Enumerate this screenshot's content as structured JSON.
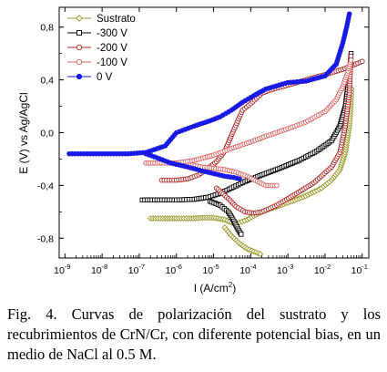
{
  "chart_data": {
    "type": "line",
    "xlabel": "I (A/cm",
    "xlabel_sup": "2",
    "xlabel_end": ")",
    "ylabel": "E (V) vs Ag/AgCl",
    "x_scale": "log",
    "xlim": [
      7e-10,
      0.15
    ],
    "ylim": [
      -0.95,
      0.95
    ],
    "x_ticks": [
      {
        "value": 1e-09,
        "label": "10",
        "exp": "-9"
      },
      {
        "value": 1e-08,
        "label": "10",
        "exp": "-8"
      },
      {
        "value": 1e-07,
        "label": "10",
        "exp": "-7"
      },
      {
        "value": 1e-06,
        "label": "10",
        "exp": "-6"
      },
      {
        "value": 1e-05,
        "label": "10",
        "exp": "-5"
      },
      {
        "value": 0.0001,
        "label": "10",
        "exp": "-4"
      },
      {
        "value": 0.001,
        "label": "10",
        "exp": "-3"
      },
      {
        "value": 0.01,
        "label": "10",
        "exp": "-2"
      },
      {
        "value": 0.1,
        "label": "10",
        "exp": "-1"
      }
    ],
    "y_ticks": [
      {
        "value": 0.8,
        "label": "0,8"
      },
      {
        "value": 0.4,
        "label": "0,4"
      },
      {
        "value": 0.0,
        "label": "0,0"
      },
      {
        "value": -0.4,
        "label": "-0,4"
      },
      {
        "value": -0.8,
        "label": "-0,8"
      }
    ],
    "legend_position": "top-left",
    "series": [
      {
        "name": "Sustrato",
        "color": "#9a9a2a",
        "marker": "diamond",
        "marker_fill": "none",
        "points": [
          [
            2e-07,
            -0.65
          ],
          [
            5e-07,
            -0.65
          ],
          [
            1e-06,
            -0.65
          ],
          [
            2.5e-06,
            -0.65
          ],
          [
            5e-06,
            -0.645
          ],
          [
            1e-05,
            -0.645
          ],
          [
            2e-05,
            -0.66
          ],
          [
            3.5e-05,
            -0.69
          ],
          [
            5e-05,
            -0.68
          ],
          [
            8e-05,
            -0.66
          ],
          [
            0.00012,
            -0.63
          ],
          [
            0.0002,
            -0.6
          ],
          [
            0.0004,
            -0.57
          ],
          [
            0.001,
            -0.53
          ],
          [
            0.003,
            -0.48
          ],
          [
            0.008,
            -0.42
          ],
          [
            0.015,
            -0.36
          ],
          [
            0.025,
            -0.28
          ],
          [
            0.035,
            -0.15
          ],
          [
            0.045,
            0.05
          ],
          [
            0.05,
            0.25
          ],
          [
            0.052,
            0.33
          ]
        ],
        "branch_points": [
          [
            2e-05,
            -0.72
          ],
          [
            3e-05,
            -0.78
          ],
          [
            5e-05,
            -0.84
          ],
          [
            8e-05,
            -0.88
          ],
          [
            0.00012,
            -0.9
          ],
          [
            0.00018,
            -0.92
          ]
        ]
      },
      {
        "name": "-300 V",
        "color": "#000000",
        "marker": "square",
        "marker_fill": "none",
        "points": [
          [
            1.2e-07,
            -0.51
          ],
          [
            3e-07,
            -0.51
          ],
          [
            1e-06,
            -0.51
          ],
          [
            3e-06,
            -0.505
          ],
          [
            7e-06,
            -0.49
          ],
          [
            1.5e-05,
            -0.46
          ],
          [
            3e-05,
            -0.42
          ],
          [
            7e-05,
            -0.37
          ],
          [
            0.0002,
            -0.32
          ],
          [
            0.0006,
            -0.27
          ],
          [
            0.002,
            -0.21
          ],
          [
            0.006,
            -0.14
          ],
          [
            0.015,
            -0.06
          ],
          [
            0.025,
            0.05
          ],
          [
            0.035,
            0.2
          ],
          [
            0.045,
            0.45
          ],
          [
            0.05,
            0.6
          ]
        ],
        "branch_points": [
          [
            8e-06,
            -0.52
          ],
          [
            1.5e-05,
            -0.55
          ],
          [
            2.5e-05,
            -0.6
          ],
          [
            3.5e-05,
            -0.67
          ],
          [
            4.5e-05,
            -0.73
          ],
          [
            5.5e-05,
            -0.77
          ]
        ]
      },
      {
        "name": "-200 V",
        "color": "#b22222",
        "marker": "circle",
        "marker_fill": "none",
        "points": [
          [
            4e-07,
            -0.36
          ],
          [
            1e-06,
            -0.36
          ],
          [
            2e-06,
            -0.35
          ],
          [
            4e-06,
            -0.32
          ],
          [
            7e-06,
            -0.27
          ],
          [
            1.2e-05,
            -0.22
          ],
          [
            2e-05,
            -0.14
          ],
          [
            3.5e-05,
            0.02
          ],
          [
            6e-05,
            0.17
          ],
          [
            0.0001,
            0.22
          ],
          [
            0.0002,
            0.3
          ],
          [
            0.0004,
            0.33
          ],
          [
            0.001,
            0.36
          ],
          [
            0.003,
            0.4
          ],
          [
            0.01,
            0.44
          ],
          [
            0.03,
            0.48
          ],
          [
            0.1,
            0.54
          ]
        ],
        "branch_points": [
          [
            1.2e-05,
            -0.42
          ],
          [
            2.5e-05,
            -0.5
          ],
          [
            4e-05,
            -0.56
          ],
          [
            7e-05,
            -0.6
          ],
          [
            0.00012,
            -0.61
          ],
          [
            0.0002,
            -0.6
          ],
          [
            0.0005,
            -0.55
          ],
          [
            0.0015,
            -0.47
          ],
          [
            0.005,
            -0.38
          ],
          [
            0.015,
            -0.26
          ],
          [
            0.025,
            -0.15
          ],
          [
            0.035,
            0.05
          ],
          [
            0.045,
            0.3
          ],
          [
            0.05,
            0.58
          ]
        ]
      },
      {
        "name": "-100 V",
        "color": "#e06060",
        "marker": "circle",
        "marker_fill": "none",
        "points": [
          [
            1.5e-07,
            -0.23
          ],
          [
            4e-07,
            -0.23
          ],
          [
            1e-06,
            -0.23
          ],
          [
            2e-06,
            -0.24
          ],
          [
            5e-06,
            -0.26
          ],
          [
            1e-05,
            -0.27
          ],
          [
            2e-05,
            -0.28
          ],
          [
            4e-05,
            -0.3
          ],
          [
            8e-05,
            -0.33
          ],
          [
            0.00015,
            -0.37
          ],
          [
            0.00025,
            -0.4
          ],
          [
            0.0005,
            -0.4
          ]
        ],
        "branch_points": [
          [
            1e-06,
            -0.23
          ],
          [
            3e-06,
            -0.21
          ],
          [
            1e-05,
            -0.17
          ],
          [
            3e-05,
            -0.12
          ],
          [
            0.0001,
            -0.07
          ],
          [
            0.0003,
            -0.02
          ],
          [
            0.001,
            0.03
          ],
          [
            0.003,
            0.08
          ],
          [
            0.01,
            0.16
          ],
          [
            0.02,
            0.25
          ],
          [
            0.03,
            0.35
          ],
          [
            0.04,
            0.45
          ],
          [
            0.05,
            0.55
          ]
        ]
      },
      {
        "name": "0 V",
        "color": "#1a1ae6",
        "marker": "filled-circle",
        "marker_fill": "#1a1ae6",
        "points": [
          [
            1.3e-09,
            -0.16
          ],
          [
            1e-08,
            -0.16
          ],
          [
            5e-08,
            -0.16
          ],
          [
            1.5e-07,
            -0.15
          ],
          [
            5e-07,
            -0.1
          ],
          [
            1e-06,
            0.0
          ],
          [
            3e-06,
            0.05
          ],
          [
            8e-06,
            0.09
          ],
          [
            1.5e-05,
            0.12
          ],
          [
            3e-05,
            0.17
          ],
          [
            6e-05,
            0.23
          ],
          [
            0.00012,
            0.28
          ],
          [
            0.00025,
            0.33
          ],
          [
            0.001,
            0.38
          ],
          [
            0.003,
            0.39
          ],
          [
            0.01,
            0.43
          ],
          [
            0.02,
            0.52
          ],
          [
            0.03,
            0.68
          ],
          [
            0.038,
            0.8
          ],
          [
            0.045,
            0.9
          ]
        ],
        "branch_points": [
          [
            1.5e-07,
            -0.16
          ],
          [
            3e-07,
            -0.19
          ],
          [
            7e-07,
            -0.23
          ],
          [
            2e-06,
            -0.26
          ],
          [
            5e-06,
            -0.29
          ],
          [
            1e-05,
            -0.31
          ],
          [
            2e-05,
            -0.33
          ],
          [
            3.5e-05,
            -0.34
          ],
          [
            5e-05,
            -0.35
          ]
        ]
      }
    ]
  },
  "caption": "Fig. 4. Curvas de polarización del sustrato y los recubrimientos de CrN/Cr, con diferente potencial bias, en un medio de NaCl al 0.5 M."
}
